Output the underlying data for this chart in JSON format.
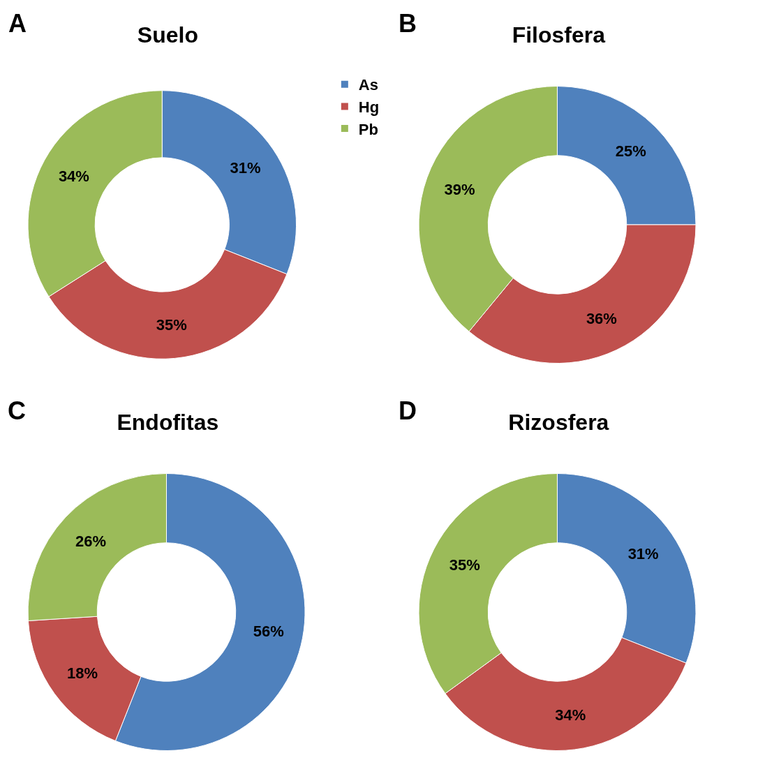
{
  "chart_data": [
    {
      "type": "donut",
      "title": "Suelo",
      "annotations": [
        "A"
      ],
      "categories": [
        "As",
        "Hg",
        "Pb"
      ],
      "values": [
        31,
        35,
        34
      ],
      "value_labels": [
        "31%",
        "35%",
        "34%"
      ],
      "colors": [
        "#4f81bd",
        "#c0504d",
        "#9bbb59"
      ],
      "legend": "top right"
    },
    {
      "type": "donut",
      "title": "Filosfera",
      "annotations": [
        "B"
      ],
      "categories": [
        null,
        null,
        null
      ],
      "values": [
        25,
        36,
        39
      ],
      "value_labels": [
        "25%",
        "36%",
        "39%"
      ],
      "colors": [
        "#4f81bd",
        "#c0504d",
        "#9bbb59"
      ]
    },
    {
      "type": "donut",
      "title": "Endofitas",
      "annotations": [
        "C"
      ],
      "categories": [
        null,
        null,
        null
      ],
      "values": [
        56,
        18,
        26
      ],
      "value_labels": [
        "56%",
        "18%",
        "26%"
      ],
      "colors": [
        "#4f81bd",
        "#c0504d",
        "#9bbb59"
      ]
    },
    {
      "type": "donut",
      "title": "Rizosfera",
      "annotations": [
        "D"
      ],
      "categories": [
        null,
        null,
        null
      ],
      "values": [
        31,
        34,
        35
      ],
      "value_labels": [
        "31%",
        "34%",
        "35%"
      ],
      "colors": [
        "#4f81bd",
        "#c0504d",
        "#9bbb59"
      ]
    }
  ]
}
